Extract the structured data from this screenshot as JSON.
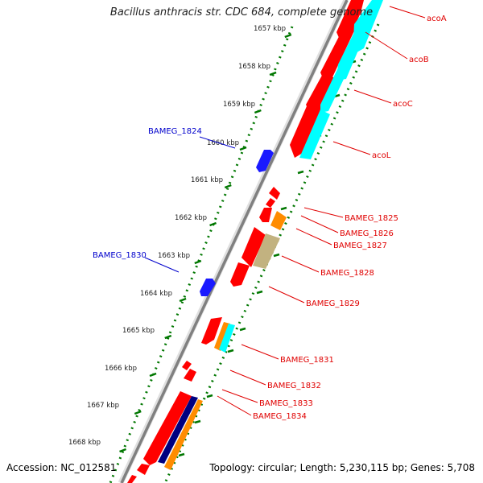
{
  "title": "Bacillus anthracis str. CDC 684, complete genome",
  "accession": "Accession: NC_012581",
  "topology": "Topology: circular; Length: 5,230,115 bp; Genes: 5,708",
  "colors": {
    "forward_gene": "#ff0000",
    "reverse_gene": "#ff0000",
    "backbone": "#808080",
    "tick": "#007700",
    "red_label": "#e00000",
    "blue_label": "#0000cc",
    "blue_gene": "#1a1aff",
    "cyan": "#00ffff",
    "orange": "#ff8c00",
    "olive": "#c2b280",
    "navy": "#000080"
  },
  "kbp_ticks": [
    "1657 kbp",
    "1658 kbp",
    "1659 kbp",
    "1660 kbp",
    "1661 kbp",
    "1662 kbp",
    "1663 kbp",
    "1664 kbp",
    "1665 kbp",
    "1666 kbp",
    "1667 kbp",
    "1668 kbp"
  ],
  "red_labels": [
    "acoA",
    "acoB",
    "acoC",
    "acoL",
    "BAMEG_1825",
    "BAMEG_1826",
    "BAMEG_1827",
    "BAMEG_1828",
    "BAMEG_1829",
    "BAMEG_1831",
    "BAMEG_1832",
    "BAMEG_1833",
    "BAMEG_1834"
  ],
  "blue_labels": [
    "BAMEG_1824",
    "BAMEG_1830"
  ]
}
